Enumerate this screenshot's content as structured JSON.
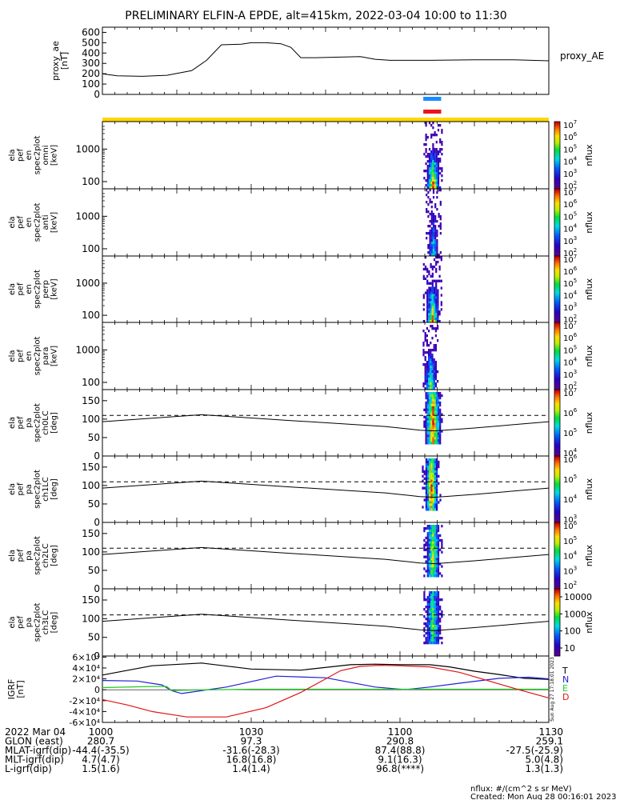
{
  "title": "PRELIMINARY ELFIN-A EPDE, alt=415km, 2022-03-04 10:00 to 11:30",
  "chart_data": [
    {
      "type": "line",
      "name": "proxy_ae",
      "ylabel_lines": [
        "proxy_ae",
        "[nT]"
      ],
      "legend": "proxy_AE",
      "ylim": [
        0,
        650
      ],
      "yticks": [
        0,
        100,
        200,
        300,
        400,
        500,
        600
      ],
      "xlim": [
        0,
        90
      ],
      "x": [
        0,
        3,
        8,
        13,
        18,
        21,
        24,
        28,
        30,
        33,
        36,
        38,
        40,
        43,
        47,
        52,
        55,
        58,
        60,
        66,
        75,
        83,
        90
      ],
      "y": [
        200,
        180,
        175,
        185,
        230,
        330,
        480,
        485,
        500,
        500,
        490,
        455,
        355,
        355,
        360,
        365,
        340,
        330,
        330,
        330,
        335,
        335,
        325
      ]
    },
    {
      "type": "bar",
      "name": "intervals",
      "segments": [
        {
          "color": "#1a8cff",
          "x0": 64.7,
          "x1": 68.3
        },
        {
          "color": "#e8141b",
          "x0": 64.7,
          "x1": 68.3
        },
        {
          "color": "#ffd700",
          "x0": 0,
          "x1": 90
        }
      ]
    },
    {
      "type": "heatmap",
      "ylabel_lines": [
        "ela",
        "pef",
        "en",
        "spec2plot",
        "omni",
        "[keV]"
      ],
      "yscale": "log",
      "ylim": [
        60,
        7000
      ],
      "yticks": [
        100,
        1000
      ],
      "ytick_labels": [
        "100",
        "1000"
      ],
      "colorbar": {
        "label": "nflux",
        "min_exp": 2,
        "max_exp": 7
      },
      "x_center": 66.5,
      "x_width": 3.2,
      "intensity": 1.0
    },
    {
      "type": "heatmap",
      "ylabel_lines": [
        "ela",
        "pef",
        "en",
        "spec2plot",
        "anti",
        "[keV]"
      ],
      "yscale": "log",
      "ylim": [
        60,
        7000
      ],
      "yticks": [
        100,
        1000
      ],
      "ytick_labels": [
        "100",
        "1000"
      ],
      "colorbar": {
        "label": "nflux",
        "min_exp": 2,
        "max_exp": 7
      },
      "x_center": 66.6,
      "x_width": 2.4,
      "intensity": 0.55
    },
    {
      "type": "heatmap",
      "ylabel_lines": [
        "ela",
        "pef",
        "en",
        "spec2plot",
        "perp",
        "[keV]"
      ],
      "yscale": "log",
      "ylim": [
        60,
        7000
      ],
      "yticks": [
        100,
        1000
      ],
      "ytick_labels": [
        "100",
        "1000"
      ],
      "colorbar": {
        "label": "nflux",
        "min_exp": 2,
        "max_exp": 7
      },
      "x_center": 66.4,
      "x_width": 3.0,
      "intensity": 0.95
    },
    {
      "type": "heatmap",
      "ylabel_lines": [
        "ela",
        "pef",
        "en",
        "spec2plot",
        "para",
        "[keV]"
      ],
      "yscale": "log",
      "ylim": [
        60,
        7000
      ],
      "yticks": [
        100,
        1000
      ],
      "ytick_labels": [
        "100",
        "1000"
      ],
      "colorbar": {
        "label": "nflux",
        "min_exp": 2,
        "max_exp": 7
      },
      "x_center": 66.0,
      "x_width": 2.8,
      "intensity": 0.7
    },
    {
      "type": "heatmap",
      "ylabel_lines": [
        "ela",
        "pef",
        "pa",
        "spec2plot",
        "ch0LC",
        "[deg]"
      ],
      "yscale": "linear",
      "ylim": [
        0,
        180
      ],
      "yticks": [
        0,
        50,
        100,
        150
      ],
      "ytick_labels": [
        "0",
        "50",
        "100",
        "150"
      ],
      "colorbar": {
        "label": "nflux",
        "min_exp": 4,
        "max_exp": 7
      },
      "x_center": 66.5,
      "x_width": 3.4,
      "intensity": 0.95,
      "dashed_y": 110
    },
    {
      "type": "heatmap",
      "ylabel_lines": [
        "ela",
        "pef",
        "pa",
        "spec2plot",
        "ch1LC",
        "[deg]"
      ],
      "yscale": "linear",
      "ylim": [
        0,
        180
      ],
      "yticks": [
        0,
        50,
        100,
        150
      ],
      "ytick_labels": [
        "0",
        "50",
        "100",
        "150"
      ],
      "colorbar": {
        "label": "nflux",
        "min_exp": 3,
        "max_exp": 6
      },
      "x_center": 66.2,
      "x_width": 3.0,
      "intensity": 0.9,
      "dashed_y": 110
    },
    {
      "type": "heatmap",
      "ylabel_lines": [
        "ela",
        "pef",
        "pa",
        "spec2plot",
        "ch2LC",
        "[deg]"
      ],
      "yscale": "linear",
      "ylim": [
        0,
        180
      ],
      "yticks": [
        0,
        50,
        100,
        150
      ],
      "ytick_labels": [
        "0",
        "50",
        "100",
        "150"
      ],
      "colorbar": {
        "label": "nflux",
        "min_exp": 2,
        "max_exp": 6
      },
      "x_center": 66.5,
      "x_width": 3.0,
      "intensity": 0.75,
      "dashed_y": 110
    },
    {
      "type": "heatmap",
      "ylabel_lines": [
        "ela",
        "pef",
        "pa",
        "spec2plot",
        "ch3LC",
        "[deg]"
      ],
      "yscale": "linear",
      "ylim": [
        0,
        180
      ],
      "yticks": [
        0,
        50,
        100,
        150
      ],
      "ytick_labels": [
        "0",
        "50",
        "100",
        "150"
      ],
      "colorbar": {
        "label": "nflux",
        "ticks": [
          "10",
          "100",
          "1000",
          "10000"
        ]
      },
      "x_center": 66.5,
      "x_width": 3.2,
      "intensity": 0.6,
      "dashed_y": 110
    },
    {
      "type": "line",
      "name": "IGRF",
      "ylabel_lines": [
        "IGRF",
        "[nT]"
      ],
      "ylim": [
        -60000,
        62000
      ],
      "yticks": [
        -60000,
        -40000,
        -20000,
        0,
        20000,
        40000,
        60000
      ],
      "ytick_labels": [
        "-6×10⁴",
        "-4×10⁴",
        "-2×10⁴",
        "0",
        "2×10⁴",
        "4×10⁴",
        "6×10⁴"
      ],
      "legend": [
        "T",
        "N",
        "E",
        "D"
      ],
      "series": [
        {
          "name": "T",
          "color": "#000000",
          "x": [
            0,
            10,
            20,
            30,
            40,
            50,
            55,
            60,
            66,
            70,
            75,
            80,
            85,
            90
          ],
          "y": [
            27000,
            44000,
            49000,
            38000,
            36000,
            46000,
            47000,
            46000,
            46000,
            42000,
            34000,
            28000,
            21000,
            19000
          ]
        },
        {
          "name": "N",
          "color": "#1f1fd4",
          "x": [
            0,
            7,
            12,
            14,
            16,
            25,
            35,
            45,
            55,
            61,
            66,
            72,
            80,
            86,
            90
          ],
          "y": [
            17000,
            16000,
            9000,
            -2000,
            -7000,
            5000,
            25000,
            22000,
            5000,
            300,
            5000,
            12000,
            21000,
            23000,
            20000
          ]
        },
        {
          "name": "E",
          "color": "#22cc22",
          "x": [
            0,
            10,
            13,
            14,
            15,
            30,
            60,
            90
          ],
          "y": [
            4000,
            6000,
            6000,
            -2000,
            -1000,
            1000,
            1000,
            1000
          ]
        },
        {
          "name": "D",
          "color": "#e01414",
          "x": [
            0,
            5,
            10,
            17,
            25,
            33,
            40,
            45,
            48,
            52,
            56,
            60,
            66,
            72,
            78,
            84,
            90
          ],
          "y": [
            -18000,
            -28000,
            -40000,
            -50000,
            -50000,
            -33000,
            -5000,
            20000,
            35000,
            43000,
            45000,
            44000,
            42000,
            32000,
            16000,
            0,
            -15000
          ]
        }
      ]
    }
  ],
  "side_stamp": "Sun Aug 27 17:18:01 2023",
  "xaxis": {
    "rows": [
      {
        "label": "2022 Mar 04",
        "values": [
          "1000",
          "1030",
          "1100",
          "1130"
        ]
      },
      {
        "label": "GLON (east)",
        "values": [
          "280.7",
          "97.3",
          "290.8",
          "259.1"
        ]
      },
      {
        "label": "MLAT-igrf(dip)",
        "values": [
          "-44.4(-35.5)",
          "-31.6(-28.3)",
          "87.4(88.8)",
          "-27.5(-25.9)"
        ]
      },
      {
        "label": "MLT-igrf(dip)",
        "values": [
          "4.7(4.7)",
          "16.8(16.8)",
          "9.1(16.3)",
          "5.0(4.8)"
        ]
      },
      {
        "label": "L-igrf(dip)",
        "values": [
          "1.5(1.6)",
          "1.4(1.4)",
          "96.8(****)",
          "1.3(1.3)"
        ]
      }
    ],
    "positions": [
      0,
      30,
      60,
      90
    ]
  },
  "footer": {
    "units": "nflux: #/(cm^2 s sr MeV)",
    "created": "Created: Mon Aug 28 00:16:01 2023"
  }
}
